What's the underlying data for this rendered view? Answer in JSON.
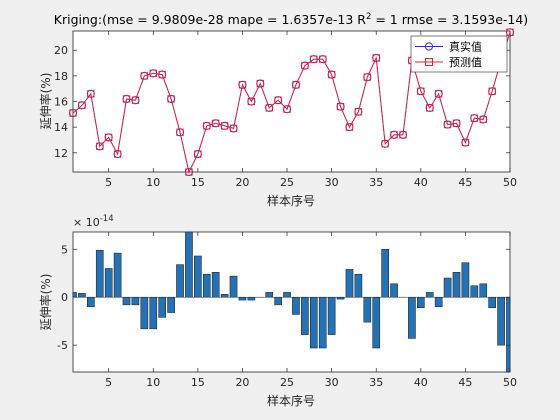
{
  "chart_data": [
    {
      "type": "line",
      "title": "Kriging:(mse = 9.9809e-28 mape = 1.6357e-13  R",
      "title_sup": "2",
      "title_rest": " = 1 rmse = 3.1593e-14)",
      "xlabel": "样本序号",
      "ylabel": "延伸率(%)",
      "xlim": [
        1,
        50
      ],
      "ylim": [
        10.5,
        21.5
      ],
      "xticks": [
        5,
        10,
        15,
        20,
        25,
        30,
        35,
        40,
        45,
        50
      ],
      "yticks": [
        12,
        14,
        16,
        18,
        20
      ],
      "legend_position": "top-right",
      "colors": {
        "true": "#2b2bff",
        "pred": "#e8202a"
      },
      "x": [
        1,
        2,
        3,
        4,
        5,
        6,
        7,
        8,
        9,
        10,
        11,
        12,
        13,
        14,
        15,
        16,
        17,
        18,
        19,
        20,
        21,
        22,
        23,
        24,
        25,
        26,
        27,
        28,
        29,
        30,
        31,
        32,
        33,
        34,
        35,
        36,
        37,
        38,
        39,
        40,
        41,
        42,
        43,
        44,
        45,
        46,
        47,
        48,
        49,
        50
      ],
      "series": [
        {
          "name": "真实值",
          "marker": "circle",
          "values": [
            15.1,
            15.7,
            16.6,
            12.5,
            13.2,
            11.9,
            16.2,
            16.1,
            18.0,
            18.2,
            18.1,
            16.2,
            13.6,
            10.5,
            11.9,
            14.1,
            14.3,
            14.1,
            13.9,
            17.3,
            16.0,
            17.4,
            15.5,
            16.1,
            15.4,
            17.3,
            18.8,
            19.3,
            19.3,
            18.1,
            15.6,
            14.0,
            15.2,
            17.9,
            19.4,
            12.7,
            13.4,
            13.4,
            19.2,
            16.8,
            15.5,
            16.6,
            14.2,
            14.3,
            12.8,
            14.7,
            14.6,
            16.8,
            19.2,
            21.4
          ]
        },
        {
          "name": "预测值",
          "marker": "square",
          "values": [
            15.1,
            15.7,
            16.6,
            12.5,
            13.2,
            11.9,
            16.2,
            16.1,
            18.0,
            18.2,
            18.1,
            16.2,
            13.6,
            10.5,
            11.9,
            14.1,
            14.3,
            14.1,
            13.9,
            17.3,
            16.0,
            17.4,
            15.5,
            16.1,
            15.4,
            17.3,
            18.8,
            19.3,
            19.3,
            18.1,
            15.6,
            14.0,
            15.2,
            17.9,
            19.4,
            12.7,
            13.4,
            13.4,
            19.2,
            16.8,
            15.5,
            16.6,
            14.2,
            14.3,
            12.8,
            14.7,
            14.6,
            16.8,
            19.2,
            21.4
          ]
        }
      ]
    },
    {
      "type": "bar",
      "xlabel": "样本序号",
      "ylabel": "延伸率(%)",
      "exponent_label": "× 10",
      "exponent_power": "-14",
      "scale": 1e-14,
      "xlim": [
        1,
        50
      ],
      "ylim": [
        -7.8,
        6.8
      ],
      "xticks": [
        5,
        10,
        15,
        20,
        25,
        30,
        35,
        40,
        45,
        50
      ],
      "yticks": [
        -5,
        0,
        5
      ],
      "bar_color": "#2471b3",
      "x": [
        1,
        2,
        3,
        4,
        5,
        6,
        7,
        8,
        9,
        10,
        11,
        12,
        13,
        14,
        15,
        16,
        17,
        18,
        19,
        20,
        21,
        22,
        23,
        24,
        25,
        26,
        27,
        28,
        29,
        30,
        31,
        32,
        33,
        34,
        35,
        36,
        37,
        38,
        39,
        40,
        41,
        42,
        43,
        44,
        45,
        46,
        47,
        48,
        49,
        50
      ],
      "values": [
        0.5,
        0.4,
        -1.0,
        4.9,
        3.0,
        4.6,
        -0.8,
        -0.8,
        -3.3,
        -3.3,
        -2.1,
        -1.6,
        3.4,
        6.8,
        4.3,
        2.4,
        2.6,
        0.3,
        2.2,
        -0.3,
        -0.3,
        0.0,
        0.5,
        -0.8,
        0.5,
        -1.8,
        -3.9,
        -5.3,
        -5.3,
        -3.9,
        -0.2,
        2.9,
        2.4,
        -2.6,
        -5.3,
        5.0,
        1.4,
        0.0,
        -4.3,
        -1.1,
        0.5,
        -1.0,
        2.0,
        2.6,
        3.6,
        1.2,
        1.4,
        -1.1,
        -5.0,
        -7.8
      ]
    }
  ]
}
